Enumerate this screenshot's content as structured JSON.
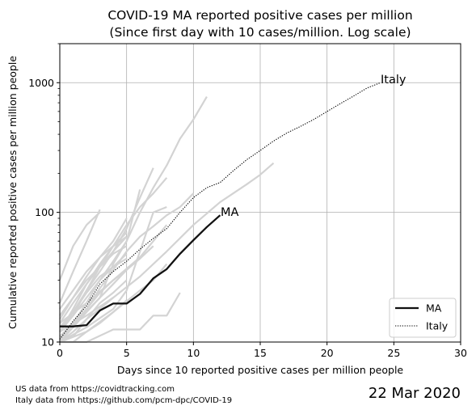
{
  "chart_data": {
    "type": "line",
    "title_line1": "COVID-19 MA reported positive cases per million",
    "title_line2": "(Since first day with 10 cases/million. Log scale)",
    "xlabel": "Days since 10 reported positive cases per million people",
    "ylabel": "Cumulative reported positive cases per million people",
    "xlim": [
      0,
      30
    ],
    "ylim": [
      10,
      2000
    ],
    "y_scale": "log",
    "grid": true,
    "x_ticks": [
      0,
      5,
      10,
      15,
      20,
      25,
      30
    ],
    "y_ticks": [
      10,
      100,
      1000
    ],
    "y_tick_labels": [
      "10",
      "100",
      "1000"
    ],
    "legend_position": "lower-right",
    "series": [
      {
        "name": "MA",
        "color": "#111111",
        "style": "solid",
        "label_text": "MA",
        "x": [
          0,
          1,
          2,
          3,
          4,
          5,
          6,
          7,
          8,
          9,
          10,
          11,
          12
        ],
        "y": [
          13.2,
          13.2,
          13.5,
          17.5,
          19.8,
          19.8,
          23.5,
          31,
          36.5,
          48,
          61,
          77,
          95
        ]
      },
      {
        "name": "Italy",
        "color": "#000000",
        "style": "dotted",
        "label_text": "Italy",
        "x": [
          0,
          1,
          2,
          3,
          4,
          5,
          6,
          7,
          8,
          9,
          10,
          11,
          12,
          13,
          14,
          15,
          16,
          17,
          18,
          19,
          20,
          21,
          22,
          23,
          24
        ],
        "y": [
          10.5,
          14.5,
          19,
          28,
          35,
          42,
          52,
          63,
          75,
          100,
          130,
          155,
          170,
          210,
          255,
          300,
          355,
          410,
          460,
          520,
          600,
          690,
          790,
          910,
          1000
        ]
      }
    ],
    "background_series": {
      "color": "#d3d3d3",
      "lines": [
        {
          "x": [
            0,
            3,
            4,
            5,
            6,
            7,
            8,
            9,
            10,
            11
          ],
          "y": [
            10.5,
            22,
            40,
            60,
            100,
            155,
            230,
            370,
            520,
            780
          ]
        },
        {
          "x": [
            0,
            1,
            2,
            3
          ],
          "y": [
            20,
            35,
            60,
            105
          ]
        },
        {
          "x": [
            0,
            1,
            2,
            3,
            4,
            5
          ],
          "y": [
            15,
            22,
            32,
            45,
            55,
            65
          ]
        },
        {
          "x": [
            0,
            1,
            2,
            3,
            4,
            5,
            6,
            7
          ],
          "y": [
            12,
            16,
            25,
            35,
            50,
            75,
            130,
            220
          ]
        },
        {
          "x": [
            0,
            1,
            2,
            3,
            4,
            5,
            6
          ],
          "y": [
            11,
            14,
            20,
            30,
            42,
            60,
            150
          ]
        },
        {
          "x": [
            0,
            1,
            2,
            3,
            4,
            5,
            6,
            7,
            8
          ],
          "y": [
            13,
            17,
            25,
            38,
            55,
            80,
            110,
            140,
            185
          ]
        },
        {
          "x": [
            0,
            1,
            2,
            3,
            4,
            5,
            6,
            7,
            8,
            9,
            10
          ],
          "y": [
            10,
            13,
            18,
            26,
            36,
            50,
            65,
            78,
            95,
            110,
            140
          ]
        },
        {
          "x": [
            0,
            2,
            4,
            6,
            8,
            10,
            12,
            14,
            15,
            16
          ],
          "y": [
            12,
            16,
            22,
            32,
            50,
            80,
            120,
            165,
            195,
            240
          ]
        },
        {
          "x": [
            0,
            2,
            4,
            6,
            7,
            8
          ],
          "y": [
            10,
            12,
            17,
            25,
            30,
            40
          ]
        },
        {
          "x": [
            0,
            1,
            2,
            3,
            4,
            5
          ],
          "y": [
            12,
            18,
            28,
            40,
            55,
            70
          ]
        },
        {
          "x": [
            0,
            1,
            2,
            3,
            4,
            5
          ],
          "y": [
            10,
            12,
            15,
            20,
            24,
            30
          ]
        },
        {
          "x": [
            0,
            1,
            2,
            3,
            4,
            5
          ],
          "y": [
            16,
            22,
            30,
            38,
            48,
            55
          ]
        },
        {
          "x": [
            0,
            1,
            2,
            3,
            4,
            5
          ],
          "y": [
            18,
            25,
            35,
            45,
            60,
            90
          ]
        },
        {
          "x": [
            0,
            1,
            2,
            3,
            4,
            5
          ],
          "y": [
            14,
            20,
            28,
            38,
            50,
            65
          ]
        },
        {
          "x": [
            0,
            1,
            2,
            3,
            4
          ],
          "y": [
            10,
            11,
            15,
            18,
            22
          ]
        },
        {
          "x": [
            0,
            1,
            2,
            3,
            4,
            5
          ],
          "y": [
            13,
            16,
            22,
            30,
            38,
            48
          ]
        },
        {
          "x": [
            0,
            1,
            2,
            3,
            4,
            5
          ],
          "y": [
            11,
            14,
            18,
            24,
            30,
            36
          ]
        },
        {
          "x": [
            0,
            2,
            4,
            6,
            7,
            8
          ],
          "y": [
            14,
            20,
            30,
            45,
            60,
            80
          ]
        },
        {
          "x": [
            0,
            2,
            4,
            5,
            7,
            8
          ],
          "y": [
            10,
            13,
            18,
            25,
            100,
            110
          ]
        },
        {
          "x": [
            0,
            1,
            2,
            3,
            4,
            5,
            6,
            7
          ],
          "y": [
            11,
            13,
            17,
            22,
            28,
            36,
            44,
            55
          ]
        },
        {
          "x": [
            0,
            2,
            4,
            5,
            6,
            7,
            8,
            9
          ],
          "y": [
            10,
            10,
            12.5,
            12.5,
            12.5,
            16,
            16,
            24
          ]
        },
        {
          "x": [
            0,
            1,
            2,
            3,
            4,
            5
          ],
          "y": [
            10,
            10,
            12,
            14,
            17,
            21
          ]
        },
        {
          "x": [
            0,
            1,
            2,
            3
          ],
          "y": [
            30,
            55,
            80,
            100
          ]
        },
        {
          "x": [
            0,
            1,
            2,
            3,
            4,
            5
          ],
          "y": [
            12,
            17,
            24,
            32,
            38,
            44
          ]
        }
      ]
    }
  },
  "legend": {
    "items": [
      {
        "label": "MA",
        "style": "solid"
      },
      {
        "label": "Italy",
        "style": "dotted"
      }
    ]
  },
  "footer": {
    "source_us": "US data from https://covidtracking.com",
    "source_italy": "Italy data from https://github.com/pcm-dpc/COVID-19",
    "date": "22 Mar 2020"
  }
}
